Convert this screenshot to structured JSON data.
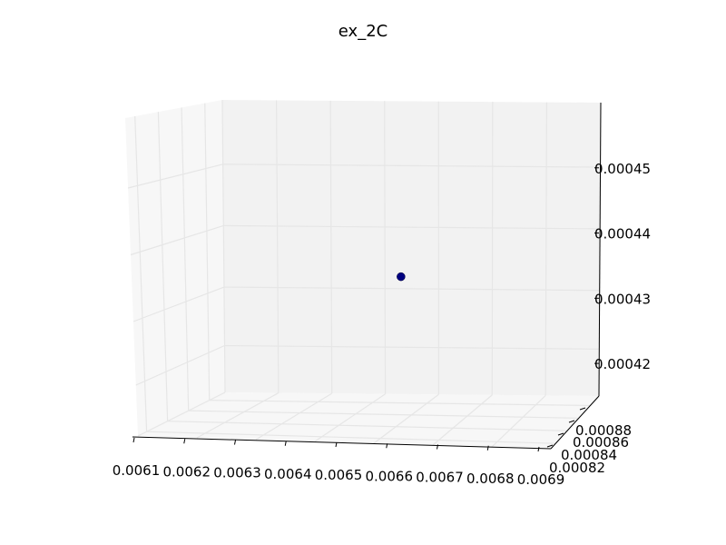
{
  "chart_data": {
    "type": "scatter",
    "projection": "3d",
    "title": "ex_2C",
    "xlabel": "",
    "ylabel": "",
    "zlabel": "",
    "grid": true,
    "x_ticks": [
      "0.0061",
      "0.0062",
      "0.0063",
      "0.0064",
      "0.0065",
      "0.0066",
      "0.0067",
      "0.0068",
      "0.0069"
    ],
    "y_ticks": [
      "0.00082",
      "0.00084",
      "0.00086",
      "0.00088"
    ],
    "z_ticks": [
      "0.00042",
      "0.00043",
      "0.00044",
      "0.00045"
    ],
    "xlim": [
      0.0061,
      0.0069
    ],
    "ylim": [
      0.00081,
      0.00089
    ],
    "zlim": [
      0.000415,
      0.00046
    ],
    "series": [
      {
        "points": [
          {
            "x": 0.00655,
            "y": 0.00085,
            "z": 0.000437
          }
        ]
      }
    ],
    "colors": {
      "marker": "#000080",
      "pane": "#f2f2f2",
      "pane_side": "#f7f7f7",
      "grid": "#e6e6e6"
    }
  }
}
